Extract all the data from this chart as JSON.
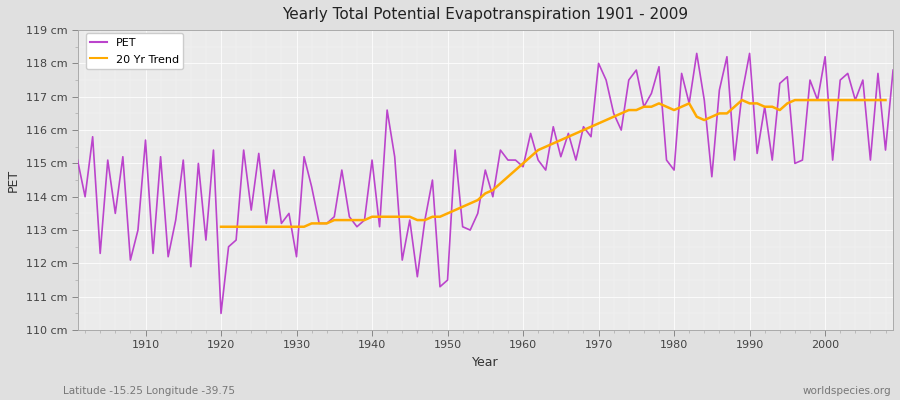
{
  "title": "Yearly Total Potential Evapotranspiration 1901 - 2009",
  "xlabel": "Year",
  "ylabel": "PET",
  "subtitle_left": "Latitude -15.25 Longitude -39.75",
  "watermark": "worldspecies.org",
  "ylim": [
    110,
    119
  ],
  "xlim": [
    1901,
    2009
  ],
  "pet_color": "#bb44cc",
  "trend_color": "#ffaa00",
  "fig_bg_color": "#e0e0e0",
  "plot_bg_color": "#ebebeb",
  "years": [
    1901,
    1902,
    1903,
    1904,
    1905,
    1906,
    1907,
    1908,
    1909,
    1910,
    1911,
    1912,
    1913,
    1914,
    1915,
    1916,
    1917,
    1918,
    1919,
    1920,
    1921,
    1922,
    1923,
    1924,
    1925,
    1926,
    1927,
    1928,
    1929,
    1930,
    1931,
    1932,
    1933,
    1934,
    1935,
    1936,
    1937,
    1938,
    1939,
    1940,
    1941,
    1942,
    1943,
    1944,
    1945,
    1946,
    1947,
    1948,
    1949,
    1950,
    1951,
    1952,
    1953,
    1954,
    1955,
    1956,
    1957,
    1958,
    1959,
    1960,
    1961,
    1962,
    1963,
    1964,
    1965,
    1966,
    1967,
    1968,
    1969,
    1970,
    1971,
    1972,
    1973,
    1974,
    1975,
    1976,
    1977,
    1978,
    1979,
    1980,
    1981,
    1982,
    1983,
    1984,
    1985,
    1986,
    1987,
    1988,
    1989,
    1990,
    1991,
    1992,
    1993,
    1994,
    1995,
    1996,
    1997,
    1998,
    1999,
    2000,
    2001,
    2002,
    2003,
    2004,
    2005,
    2006,
    2007,
    2008,
    2009
  ],
  "pet": [
    115.1,
    114.0,
    115.8,
    112.3,
    115.1,
    113.5,
    115.2,
    112.1,
    113.0,
    115.7,
    112.3,
    115.2,
    112.2,
    113.3,
    115.1,
    111.9,
    115.0,
    112.7,
    115.4,
    110.5,
    112.5,
    112.7,
    115.4,
    113.6,
    115.3,
    113.2,
    114.8,
    113.2,
    113.5,
    112.2,
    115.2,
    114.3,
    113.2,
    113.2,
    113.4,
    114.8,
    113.4,
    113.1,
    113.3,
    115.1,
    113.1,
    116.6,
    115.2,
    112.1,
    113.3,
    111.6,
    113.3,
    114.5,
    111.3,
    111.5,
    115.4,
    113.1,
    113.0,
    113.5,
    114.8,
    114.0,
    115.4,
    115.1,
    115.1,
    114.9,
    115.9,
    115.1,
    114.8,
    116.1,
    115.2,
    115.9,
    115.1,
    116.1,
    115.8,
    118.0,
    117.5,
    116.5,
    116.0,
    117.5,
    117.8,
    116.7,
    117.1,
    117.9,
    115.1,
    114.8,
    117.7,
    116.8,
    118.3,
    116.9,
    114.6,
    117.2,
    118.2,
    115.1,
    117.1,
    118.3,
    115.3,
    116.7,
    115.1,
    117.4,
    117.6,
    115.0,
    115.1,
    117.5,
    116.9,
    118.2,
    115.1,
    117.5,
    117.7,
    116.9,
    117.5,
    115.1,
    117.7,
    115.4,
    117.8
  ],
  "trend": [
    null,
    null,
    null,
    null,
    null,
    null,
    null,
    null,
    null,
    null,
    null,
    null,
    null,
    null,
    null,
    null,
    null,
    null,
    null,
    113.1,
    113.1,
    113.1,
    113.1,
    113.1,
    113.1,
    113.1,
    113.1,
    113.1,
    113.1,
    113.1,
    113.1,
    113.2,
    113.2,
    113.2,
    113.3,
    113.3,
    113.3,
    113.3,
    113.3,
    113.4,
    113.4,
    113.4,
    113.4,
    113.4,
    113.4,
    113.3,
    113.3,
    113.4,
    113.4,
    113.5,
    113.6,
    113.7,
    113.8,
    113.9,
    114.1,
    114.2,
    114.4,
    114.6,
    114.8,
    115.0,
    115.2,
    115.4,
    115.5,
    115.6,
    115.7,
    115.8,
    115.9,
    116.0,
    116.1,
    116.2,
    116.3,
    116.4,
    116.5,
    116.6,
    116.6,
    116.7,
    116.7,
    116.8,
    116.7,
    116.6,
    116.7,
    116.8,
    116.4,
    116.3,
    116.4,
    116.5,
    116.5,
    116.7,
    116.9,
    116.8,
    116.8,
    116.7,
    116.7,
    116.6,
    116.8,
    116.9,
    116.9,
    116.9,
    116.9,
    116.9,
    116.9,
    116.9,
    116.9,
    116.9,
    116.9,
    116.9,
    116.9,
    116.9
  ]
}
